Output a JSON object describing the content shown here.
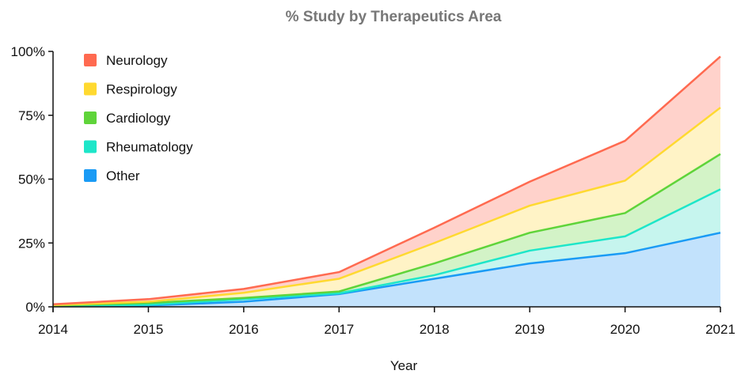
{
  "chart_data": {
    "type": "area",
    "stacked": true,
    "title": "% Study by Therapeutics Area",
    "xlabel": "Year",
    "ylabel": "",
    "x": [
      2014,
      2015,
      2016,
      2017,
      2018,
      2019,
      2020,
      2021
    ],
    "ylim": [
      0,
      100
    ],
    "yticks": [
      "0%",
      "25%",
      "50%",
      "75%",
      "100%"
    ],
    "ytick_values": [
      0,
      25,
      50,
      75,
      100
    ],
    "grid": false,
    "legend_position": "top-left",
    "series": [
      {
        "name": "Other",
        "color": "#1a9bf5",
        "fill": "#c2e2fc",
        "values": [
          0.3,
          0.5,
          2,
          5,
          11,
          17,
          21,
          29
        ]
      },
      {
        "name": "Rheumatology",
        "color": "#1de6c9",
        "fill": "#c6f5ee",
        "values": [
          0.1,
          0.3,
          1,
          0.3,
          1.4,
          5,
          6.6,
          17
        ]
      },
      {
        "name": "Cardiology",
        "color": "#5fd43a",
        "fill": "#d3f3c7",
        "values": [
          0.1,
          0.7,
          0.5,
          0.7,
          4.6,
          7,
          9.1,
          13.8
        ]
      },
      {
        "name": "Respirology",
        "color": "#ffd930",
        "fill": "#fff3c6",
        "values": [
          0.2,
          0.5,
          2,
          5,
          8,
          10.6,
          12.7,
          18.2
        ]
      },
      {
        "name": "Neurology",
        "color": "#ff6a50",
        "fill": "#ffd2cb",
        "values": [
          0.3,
          1,
          1.5,
          2.6,
          6,
          9.4,
          15.6,
          20
        ]
      }
    ]
  }
}
